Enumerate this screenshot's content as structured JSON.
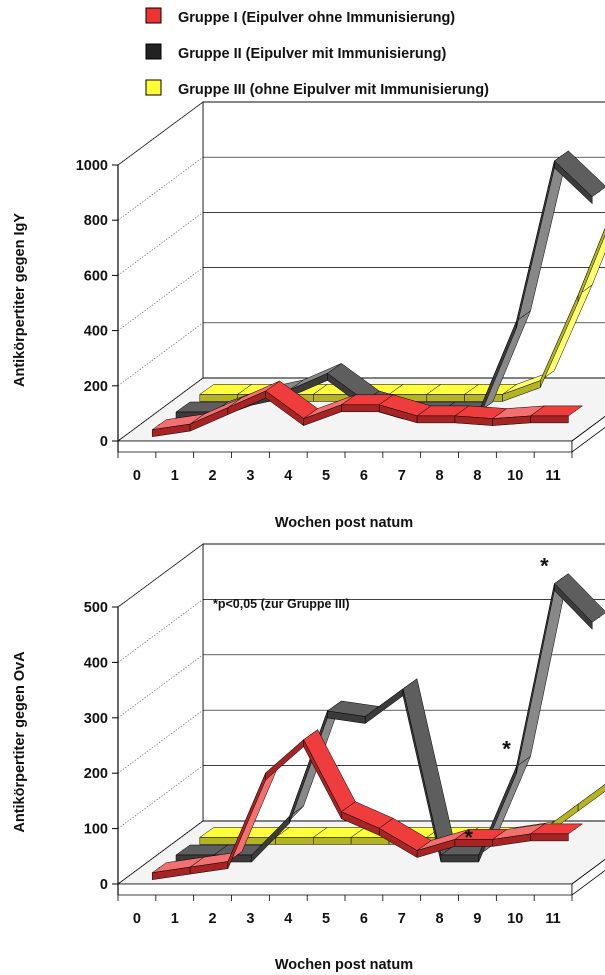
{
  "legend": [
    {
      "label": "Gruppe I (Eipulver ohne Immunisierung)",
      "color": "#ee3333"
    },
    {
      "label": "Gruppe II (Eipulver mit Immunisierung)",
      "color": "#222222"
    },
    {
      "label": "Gruppe III (ohne Eipulver mit Immunisierung)",
      "color": "#ffff33"
    }
  ],
  "chart_data": [
    {
      "type": "line",
      "style": "3d-ribbon",
      "ylabel": "Antikörpertiter gegen IgY",
      "xlabel": "Wochen post natum",
      "categories": [
        "0",
        "1",
        "2",
        "3",
        "4",
        "5",
        "6",
        "7",
        "8",
        "8",
        "10",
        "11"
      ],
      "yticks": [
        "0",
        "200",
        "400",
        "600",
        "800",
        "1000"
      ],
      "ylim": [
        0,
        1000
      ],
      "grid": true,
      "annotations": [],
      "series": [
        {
          "name": "Gruppe III (ohne Eipulver mit Immunisierung)",
          "color": "#ffff33",
          "values": [
            0,
            0,
            0,
            0,
            0,
            0,
            0,
            0,
            0,
            50,
            360,
            700
          ]
        },
        {
          "name": "Gruppe II (Eipulver mit Immunisierung)",
          "color": "#555555",
          "values": [
            0,
            0,
            50,
            80,
            140,
            40,
            0,
            0,
            0,
            330,
            910,
            780
          ]
        },
        {
          "name": "Gruppe I (Eipulver ohne Immunisierung)",
          "color": "#ee3333",
          "values": [
            0,
            20,
            80,
            140,
            40,
            90,
            90,
            50,
            50,
            40,
            50,
            50
          ]
        }
      ]
    },
    {
      "type": "line",
      "style": "3d-ribbon",
      "ylabel": "Antikörpertiter gegen OvA",
      "xlabel": "Wochen post natum",
      "categories": [
        "0",
        "1",
        "2",
        "3",
        "4",
        "5",
        "6",
        "7",
        "8",
        "9",
        "10",
        "11"
      ],
      "yticks": [
        "0",
        "100",
        "200",
        "300",
        "400",
        "500"
      ],
      "ylim": [
        0,
        500
      ],
      "grid": true,
      "note": "*p<0,05 (zur Gruppe III)",
      "annotations": [
        {
          "text": "*",
          "category_index": 8,
          "series": "Gruppe II (Eipulver mit Immunisierung)"
        },
        {
          "text": "*",
          "category_index": 9,
          "series": "Gruppe II (Eipulver mit Immunisierung)"
        },
        {
          "text": "*",
          "category_index": 10,
          "series": "Gruppe II (Eipulver mit Immunisierung)"
        }
      ],
      "series": [
        {
          "name": "Gruppe III (ohne Eipulver mit Immunisierung)",
          "color": "#ffff33",
          "values": [
            0,
            0,
            0,
            0,
            0,
            0,
            0,
            0,
            0,
            10,
            60,
            110
          ]
        },
        {
          "name": "Gruppe II (Eipulver mit Immunisierung)",
          "color": "#555555",
          "values": [
            0,
            0,
            0,
            70,
            260,
            250,
            300,
            0,
            0,
            160,
            490,
            420
          ]
        },
        {
          "name": "Gruppe I (Eipulver ohne Immunisierung)",
          "color": "#ee3333",
          "values": [
            0,
            10,
            20,
            180,
            240,
            110,
            80,
            40,
            60,
            60,
            70,
            70
          ]
        }
      ]
    }
  ]
}
